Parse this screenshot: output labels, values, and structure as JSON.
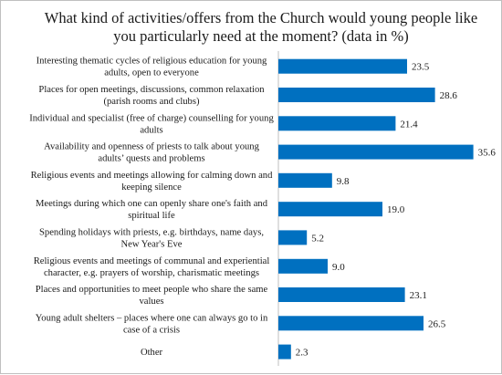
{
  "chart_data": {
    "type": "bar",
    "orientation": "horizontal",
    "title": "What kind of activities/offers from the Church would young people like you particularly need at the moment? (data in %)",
    "title_lines": [
      "What kind of activities/offers from the Church would young people like",
      "you particularly need at the moment? (data in %)"
    ],
    "categories": [
      [
        "Interesting thematic cycles of religious education for young",
        "adults, open to everyone"
      ],
      [
        "Places for open meetings, discussions, common relaxation",
        "(parish rooms and clubs)"
      ],
      [
        "Individual and specialist (free of charge) counselling for young",
        "adults"
      ],
      [
        "Availability and openness of priests to talk about young",
        "adults’ quests and problems"
      ],
      [
        "Religious events and meetings allowing for calming down and",
        "keeping silence"
      ],
      [
        "Meetings during which one can openly share one's faith and",
        "spiritual life"
      ],
      [
        "Spending holidays with priests, e.g. birthdays, name days,",
        "New Year's Eve"
      ],
      [
        "Religious events and meetings of communal and experiential",
        "character, e.g. prayers of worship, charismatic meetings"
      ],
      [
        "Places and opportunities to meet people who share the same",
        "values"
      ],
      [
        "Young adult shelters – places where one can always go to in",
        "case of a crisis"
      ],
      [
        "Other"
      ]
    ],
    "values": [
      23.5,
      28.6,
      21.4,
      35.6,
      9.8,
      19.0,
      5.2,
      9.0,
      23.1,
      26.5,
      2.3
    ],
    "value_labels": [
      "23.5",
      "28.6",
      "21.4",
      "35.6",
      "9.8",
      "19.0",
      "5.2",
      "9.0",
      "23.1",
      "26.5",
      "2.3"
    ],
    "xlim": [
      0,
      40
    ],
    "bar_color": "#0070c0",
    "grid": false,
    "legend": "none"
  }
}
